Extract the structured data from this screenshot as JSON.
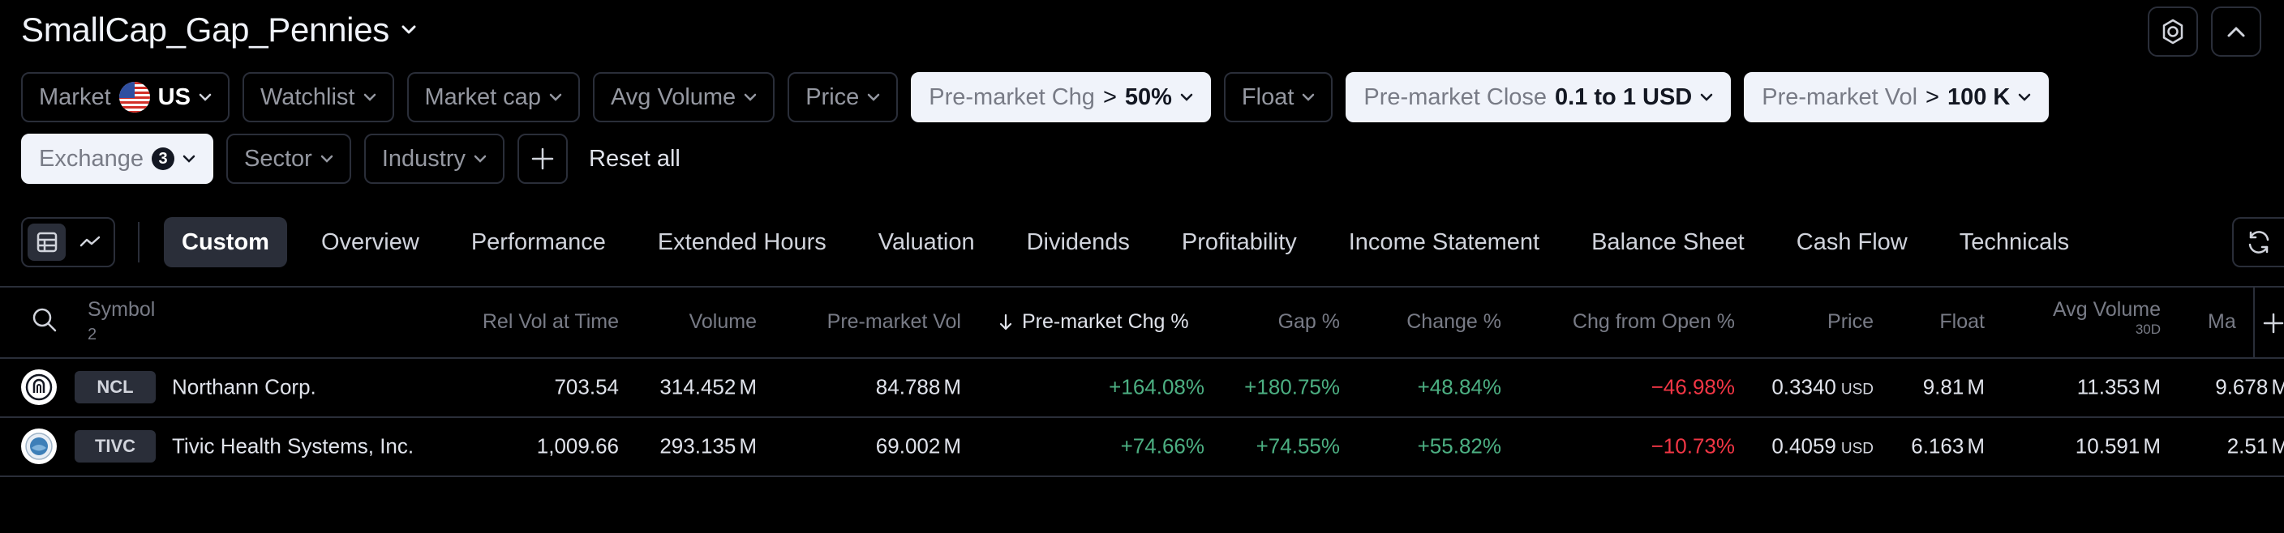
{
  "screen": {
    "title": "SmallCap_Gap_Pennies"
  },
  "filters": {
    "row1": [
      {
        "label": "Market",
        "value": "US",
        "flag": "us-flag-icon",
        "active": false
      },
      {
        "label": "Watchlist",
        "value": "",
        "active": false
      },
      {
        "label": "Market cap",
        "value": "",
        "active": false
      },
      {
        "label": "Avg Volume",
        "value": "",
        "active": false
      },
      {
        "label": "Price",
        "value": "",
        "active": false
      },
      {
        "label": "Pre-market Chg",
        "op": ">",
        "value": "50%",
        "active": true
      },
      {
        "label": "Float",
        "value": "",
        "active": false
      },
      {
        "label": "Pre-market Close",
        "value": "0.1 to 1 USD",
        "active": true
      },
      {
        "label": "Pre-market Vol",
        "op": ">",
        "value": "100 K",
        "active": true
      }
    ],
    "row2": [
      {
        "label": "Exchange",
        "badge": "3",
        "active": true
      },
      {
        "label": "Sector",
        "active": false
      },
      {
        "label": "Industry",
        "active": false
      }
    ],
    "reset_label": "Reset all"
  },
  "tabs": [
    {
      "label": "Custom",
      "active": true
    },
    {
      "label": "Overview"
    },
    {
      "label": "Performance"
    },
    {
      "label": "Extended Hours"
    },
    {
      "label": "Valuation"
    },
    {
      "label": "Dividends"
    },
    {
      "label": "Profitability"
    },
    {
      "label": "Income Statement"
    },
    {
      "label": "Balance Sheet"
    },
    {
      "label": "Cash Flow"
    },
    {
      "label": "Technicals"
    }
  ],
  "table": {
    "symbol_header": "Symbol",
    "symbol_count": "2",
    "headers": {
      "rel_vol": "Rel Vol at Time",
      "volume": "Volume",
      "pm_vol": "Pre-market Vol",
      "pm_chg": "Pre-market Chg %",
      "gap": "Gap %",
      "change": "Change %",
      "chg_open": "Chg from Open %",
      "price": "Price",
      "float": "Float",
      "avg_vol": "Avg Volume",
      "avg_vol_sub": "30D",
      "mcap": "Ma"
    },
    "rows": [
      {
        "logo": "northann-logo-icon",
        "ticker": "NCL",
        "name": "Northann Corp.",
        "rel_vol": "703.54",
        "volume": "314.452",
        "volume_u": "M",
        "pm_vol": "84.788",
        "pm_vol_u": "M",
        "pm_chg": "+164.08%",
        "gap": "+180.75%",
        "change": "+48.84%",
        "chg_open": "−46.98%",
        "price": "0.3340",
        "price_u": "USD",
        "float": "9.81",
        "float_u": "M",
        "avg_vol": "11.353",
        "avg_vol_u": "M",
        "mcap": "9.678",
        "mcap_u": "M"
      },
      {
        "logo": "tivic-logo-icon",
        "ticker": "TIVC",
        "name": "Tivic Health Systems, Inc.",
        "rel_vol": "1,009.66",
        "volume": "293.135",
        "volume_u": "M",
        "pm_vol": "69.002",
        "pm_vol_u": "M",
        "pm_chg": "+74.66%",
        "gap": "+74.55%",
        "change": "+55.82%",
        "chg_open": "−10.73%",
        "price": "0.4059",
        "price_u": "USD",
        "float": "6.163",
        "float_u": "M",
        "avg_vol": "10.591",
        "avg_vol_u": "M",
        "mcap": "2.51",
        "mcap_u": "M"
      }
    ]
  },
  "colors": {
    "positive": "#4caf82",
    "negative": "#f23645",
    "chip_active_bg": "#f0f3fa",
    "border": "#2a2e39"
  }
}
